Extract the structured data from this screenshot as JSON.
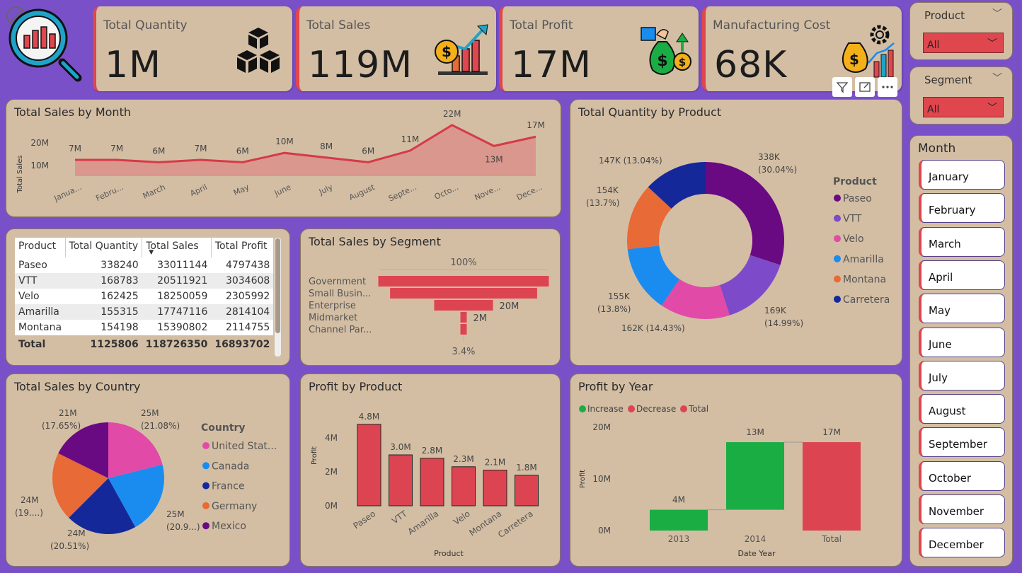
{
  "kpis": {
    "quantity": {
      "label": "Total Quantity",
      "value": "1M"
    },
    "sales": {
      "label": "Total Sales",
      "value": "119M"
    },
    "profit": {
      "label": "Total Profit",
      "value": "17M"
    },
    "cost": {
      "label": "Manufacturing Cost",
      "value": "68K"
    }
  },
  "slicers": {
    "product": {
      "title": "Product",
      "value": "All"
    },
    "segment": {
      "title": "Segment",
      "value": "All"
    },
    "month": {
      "title": "Month",
      "items": [
        "January",
        "February",
        "March",
        "April",
        "May",
        "June",
        "July",
        "August",
        "September",
        "October",
        "November",
        "December"
      ]
    }
  },
  "sales_by_month": {
    "title": "Total Sales by Month",
    "ylabel": "Total Sales",
    "y_ticks": [
      "20M",
      "10M"
    ],
    "categories": [
      "Janua...",
      "Febru...",
      "March",
      "April",
      "May",
      "June",
      "July",
      "August",
      "Septe...",
      "Octo...",
      "Nove...",
      "Dece..."
    ],
    "labels": [
      "7M",
      "7M",
      "6M",
      "7M",
      "6M",
      "10M",
      "8M",
      "6M",
      "11M",
      "22M",
      "13M",
      "17M"
    ]
  },
  "product_table": {
    "headers": [
      "Product",
      "Total Quantity",
      "Total Sales",
      "Total Profit"
    ],
    "rows": [
      [
        "Paseo",
        "338240",
        "33011144",
        "4797438"
      ],
      [
        "VTT",
        "168783",
        "20511921",
        "3034608"
      ],
      [
        "Velo",
        "162425",
        "18250059",
        "2305992"
      ],
      [
        "Amarilla",
        "155315",
        "17747116",
        "2814104"
      ],
      [
        "Montana",
        "154198",
        "15390802",
        "2114755"
      ]
    ],
    "total": [
      "Total",
      "1125806",
      "118726350",
      "16893702"
    ]
  },
  "sales_by_segment": {
    "title": "Total Sales by Segment",
    "top_label": "100%",
    "bottom_label": "3.4%",
    "categories": [
      "Government",
      "Small Busin...",
      "Enterprise",
      "Midmarket",
      "Channel Par..."
    ],
    "bar_labels": [
      "",
      "",
      "20M",
      "2M",
      ""
    ]
  },
  "quantity_by_product": {
    "title": "Total Quantity by Product",
    "legend_title": "Product",
    "labels": [
      "338K",
      "(30.04%)",
      "169K",
      "(14.99%)",
      "162K (14.43%)",
      "155K",
      "(13.8%)",
      "154K",
      "(13.7%)",
      "147K (13.04%)"
    ],
    "legend": [
      "Paseo",
      "VTT",
      "Velo",
      "Amarilla",
      "Montana",
      "Carretera"
    ]
  },
  "sales_by_country": {
    "title": "Total Sales by Country",
    "legend_title": "Country",
    "labels": [
      "25M",
      "(21.08%)",
      "25M",
      "(20.9...)",
      "24M",
      "(20.51%)",
      "24M",
      "(19....)",
      "21M",
      "(17.65%)"
    ],
    "legend": [
      "United Stat...",
      "Canada",
      "France",
      "Germany",
      "Mexico"
    ]
  },
  "profit_by_product": {
    "title": "Profit by Product",
    "xlabel": "Product",
    "ylabel": "Profit",
    "y_ticks": [
      "4M",
      "2M",
      "0M"
    ],
    "categories": [
      "Paseo",
      "VTT",
      "Amarilla",
      "Velo",
      "Montana",
      "Carretera"
    ],
    "labels": [
      "4.8M",
      "3.0M",
      "2.8M",
      "2.3M",
      "2.1M",
      "1.8M"
    ]
  },
  "profit_by_year": {
    "title": "Profit by Year",
    "xlabel": "Date Year",
    "ylabel": "Profit",
    "y_ticks": [
      "20M",
      "10M",
      "0M"
    ],
    "legend": [
      "Increase",
      "Decrease",
      "Total"
    ],
    "categories": [
      "2013",
      "2014",
      "Total"
    ],
    "labels": [
      "4M",
      "13M",
      "17M"
    ]
  },
  "chart_data": [
    {
      "type": "area",
      "title": "Total Sales by Month",
      "ylabel": "Total Sales",
      "x": [
        "Janua...",
        "Febru...",
        "March",
        "April",
        "May",
        "June",
        "July",
        "August",
        "Septe...",
        "Octo...",
        "Nove...",
        "Dece..."
      ],
      "values": [
        7,
        7,
        6,
        7,
        6,
        10,
        8,
        6,
        11,
        22,
        13,
        17
      ],
      "ylim": [
        0,
        25
      ]
    },
    {
      "type": "bar",
      "title": "Total Sales by Segment",
      "categories": [
        "Government",
        "Small Busin...",
        "Enterprise",
        "Midmarket",
        "Channel Par..."
      ],
      "values": [
        58,
        50,
        20,
        2,
        2
      ]
    },
    {
      "type": "pie",
      "title": "Total Quantity by Product",
      "categories": [
        "Paseo",
        "VTT",
        "Velo",
        "Amarilla",
        "Montana",
        "Carretera"
      ],
      "values": [
        338,
        169,
        162,
        155,
        154,
        147
      ],
      "colors": [
        "#6a0a82",
        "#7d4bc9",
        "#e24aa8",
        "#1a8cf0",
        "#e86a36",
        "#14289a"
      ]
    },
    {
      "type": "pie",
      "title": "Total Sales by Country",
      "categories": [
        "United Stat...",
        "Canada",
        "France",
        "Germany",
        "Mexico"
      ],
      "values": [
        21.08,
        20.9,
        20.51,
        19.86,
        17.65
      ],
      "colors": [
        "#e24aa8",
        "#1a8cf0",
        "#14289a",
        "#e86a36",
        "#6a0a82"
      ]
    },
    {
      "type": "bar",
      "title": "Profit by Product",
      "xlabel": "Product",
      "ylabel": "Profit",
      "categories": [
        "Paseo",
        "VTT",
        "Amarilla",
        "Velo",
        "Montana",
        "Carretera"
      ],
      "values": [
        4.8,
        3.0,
        2.8,
        2.3,
        2.1,
        1.8
      ],
      "ylim": [
        0,
        5
      ]
    },
    {
      "type": "bar",
      "title": "Profit by Year",
      "xlabel": "Date Year",
      "ylabel": "Profit",
      "categories": [
        "2013",
        "2014",
        "Total"
      ],
      "values": [
        4,
        13,
        17
      ],
      "ylim": [
        0,
        20
      ]
    }
  ],
  "colors": {
    "accent": "#e0464e",
    "background": "#7a50c8",
    "panel": "#d3bea4",
    "increase": "#1aad43",
    "decrease": "#dd4451",
    "total": "#dd4451"
  }
}
